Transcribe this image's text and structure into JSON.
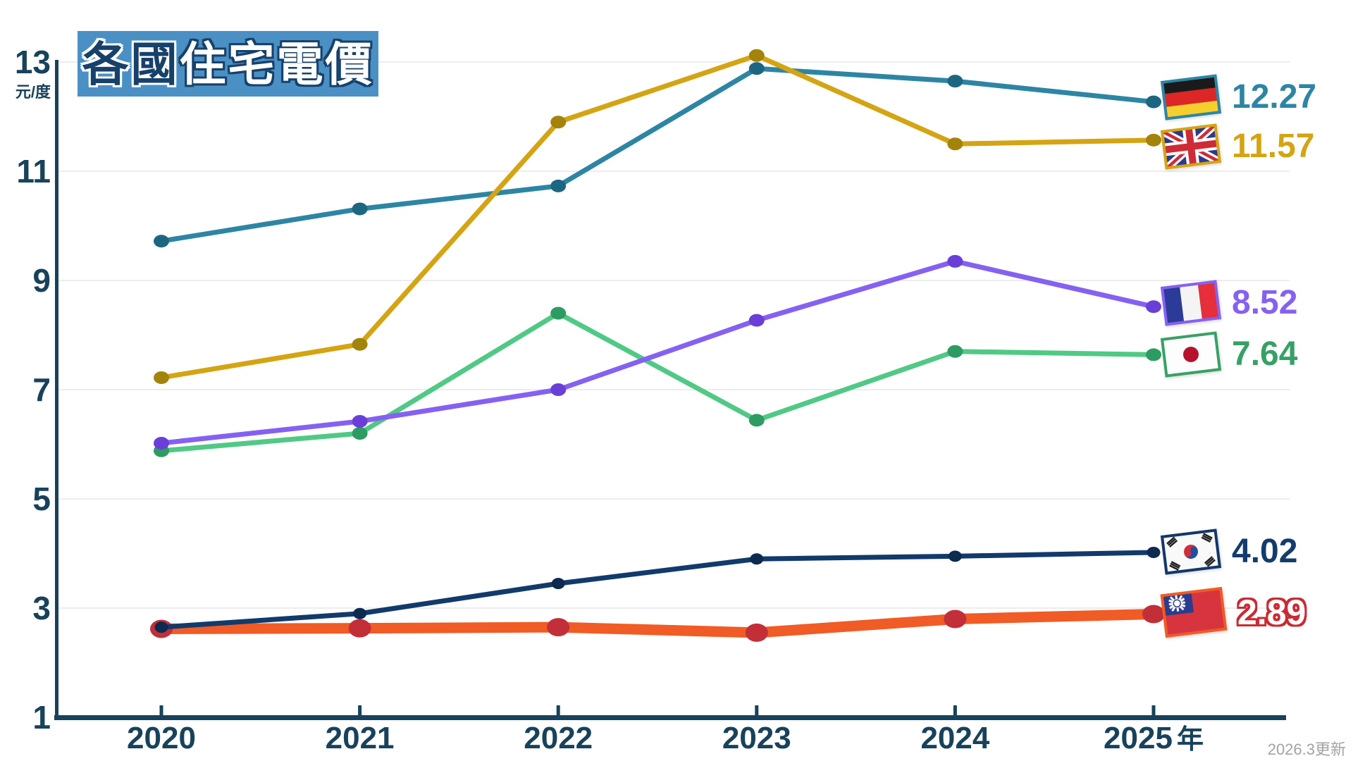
{
  "title": {
    "dark_part": "各國",
    "light_part": "住宅電價"
  },
  "y_axis": {
    "unit": "元/度",
    "ticks": [
      13,
      11,
      9,
      7,
      5,
      3,
      1
    ]
  },
  "x_axis": {
    "ticks": [
      2020,
      2021,
      2022,
      2023,
      2024,
      2025
    ],
    "suffix": "年"
  },
  "footnote": "2026.3更新",
  "colors": {
    "axis": "#18425c",
    "grid": "#ededed",
    "title_box": "#4a90c5",
    "title_dark_text": "#17416b",
    "taiwan_outline_text": "#cb2a33"
  },
  "chart_data": {
    "type": "line",
    "title": "各國住宅電價",
    "ylabel": "元/度",
    "xlabel": "年",
    "ylim": [
      1,
      13
    ],
    "grid": true,
    "legend_position": "right",
    "x": [
      2020,
      2021,
      2022,
      2023,
      2024,
      2025
    ],
    "series": [
      {
        "key": "germany",
        "name": "Germany",
        "color": "#2d85a4",
        "dot_color": "#1d6682",
        "line_width": 7,
        "marker_rx": 11,
        "marker_ry": 9,
        "values": [
          9.72,
          10.31,
          10.73,
          12.88,
          12.65,
          12.27
        ],
        "end_label": "12.27",
        "label_color": "#2d85a4"
      },
      {
        "key": "uk",
        "name": "United Kingdom",
        "color": "#d4a413",
        "dot_color": "#a3830a",
        "line_width": 7,
        "marker_rx": 11,
        "marker_ry": 9,
        "values": [
          7.22,
          7.83,
          11.9,
          13.12,
          11.5,
          11.57
        ],
        "end_label": "11.57",
        "label_color": "#d4a413"
      },
      {
        "key": "france",
        "name": "France",
        "color": "#8561f2",
        "dot_color": "#6a3fd8",
        "line_width": 7,
        "marker_rx": 11,
        "marker_ry": 9,
        "values": [
          6.02,
          6.42,
          7.0,
          8.27,
          9.35,
          8.52
        ],
        "end_label": "8.52",
        "label_color": "#8561f2"
      },
      {
        "key": "japan",
        "name": "Japan",
        "color": "#50c985",
        "dot_color": "#2d9c62",
        "line_width": 7,
        "marker_rx": 11,
        "marker_ry": 9,
        "values": [
          5.88,
          6.2,
          8.4,
          6.44,
          7.7,
          7.64
        ],
        "end_label": "7.64",
        "label_color": "#36a166"
      },
      {
        "key": "korea",
        "name": "South Korea",
        "color": "#123a6b",
        "dot_color": "#0d2a50",
        "line_width": 7,
        "marker_rx": 9.5,
        "marker_ry": 8,
        "values": [
          2.65,
          2.9,
          3.45,
          3.9,
          3.95,
          4.02
        ],
        "end_label": "4.02",
        "label_color": "#133c6e"
      },
      {
        "key": "taiwan",
        "name": "Taiwan",
        "color": "#f15b25",
        "dot_color": "#c22f39",
        "line_width": 15,
        "marker_rx": 16,
        "marker_ry": 13,
        "values": [
          2.62,
          2.63,
          2.65,
          2.55,
          2.8,
          2.89
        ],
        "end_label": "2.89",
        "label_color": "#ffffff"
      }
    ]
  }
}
